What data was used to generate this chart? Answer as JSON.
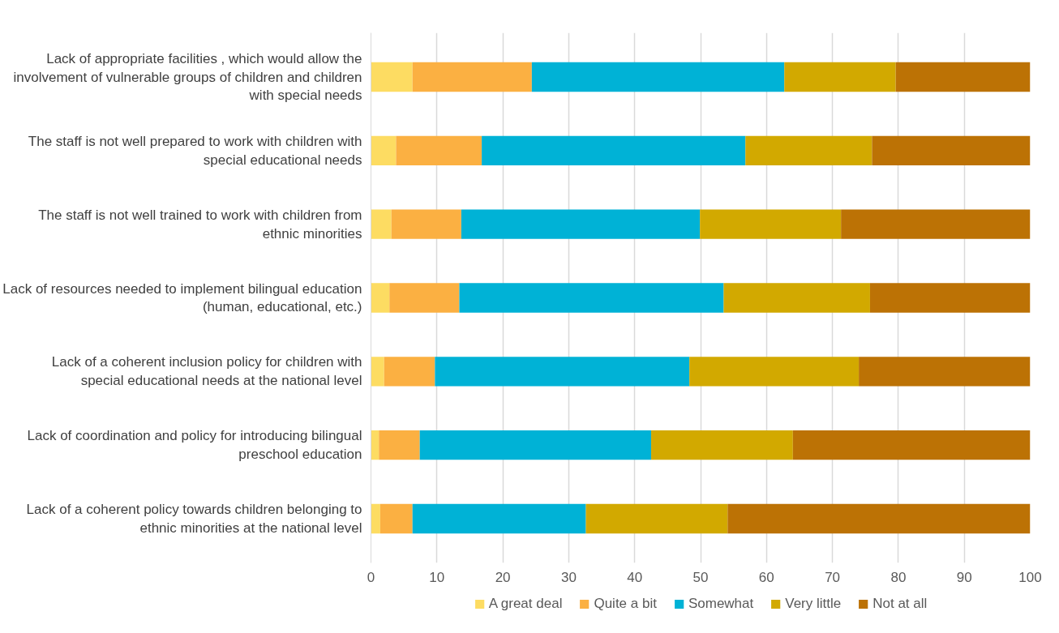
{
  "chart_data": {
    "type": "bar",
    "orientation": "horizontal",
    "stacked": true,
    "categories": [
      "Lack of appropriate facilities , which would allow the involvement of vulnerable groups of children and children with special needs",
      "The staff is not well prepared to work with children with special educational needs",
      "The staff is not well trained to work with children from ethnic minorities",
      "Lack of resources needed to implement bilingual education (human, educational, etc.)",
      "Lack of a coherent inclusion policy for children with special educational needs at the national level",
      "Lack of coordination and policy for introducing bilingual preschool education",
      "Lack of a coherent policy towards children belonging to ethnic minorities at the national level"
    ],
    "series": [
      {
        "name": "A great deal",
        "color": "#fddc62",
        "values": [
          6.3,
          3.8,
          3.1,
          2.8,
          2.0,
          1.2,
          1.4
        ]
      },
      {
        "name": "Quite a bit",
        "color": "#fbb042",
        "values": [
          18.1,
          13.0,
          10.6,
          10.6,
          7.7,
          6.2,
          4.9
        ]
      },
      {
        "name": "Somewhat",
        "color": "#00b2d6",
        "values": [
          38.3,
          40.0,
          36.2,
          40.1,
          38.6,
          35.1,
          26.3
        ]
      },
      {
        "name": "Very little",
        "color": "#d2a900",
        "values": [
          16.9,
          19.2,
          21.4,
          22.2,
          25.7,
          21.5,
          21.5
        ]
      },
      {
        "name": "Not at all",
        "color": "#bc7205",
        "values": [
          20.4,
          24.0,
          28.7,
          24.3,
          26.0,
          36.0,
          45.9
        ]
      }
    ],
    "xlim": [
      0,
      100
    ],
    "xticks": [
      0,
      10,
      20,
      30,
      40,
      50,
      60,
      70,
      80,
      90,
      100
    ],
    "grid": "x",
    "legend": "bottom"
  }
}
